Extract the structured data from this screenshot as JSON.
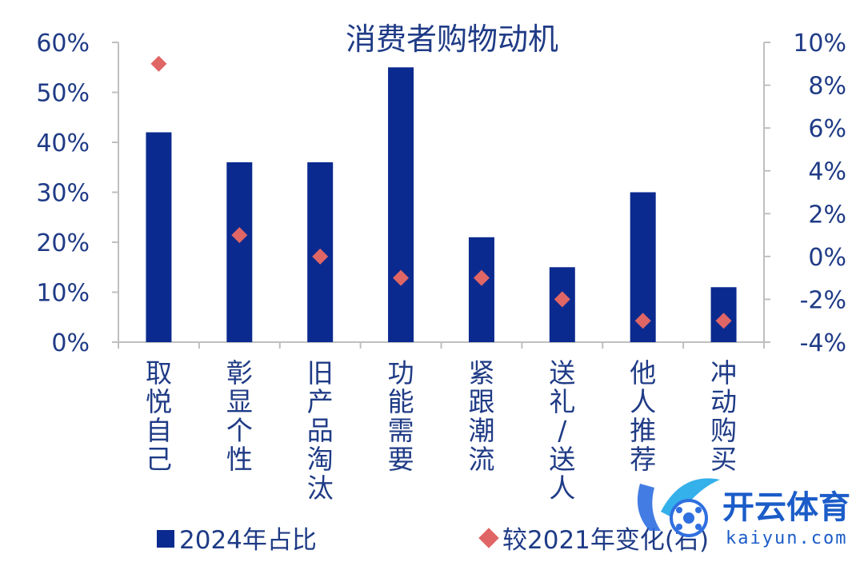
{
  "chart_data": {
    "type": "bar",
    "title": "消费者购物动机",
    "categories": [
      "取悦自己",
      "彰显个性",
      "旧产品淘汰",
      "功能需要",
      "紧跟潮流",
      "送礼/送人",
      "他人推荐",
      "冲动购买"
    ],
    "series": [
      {
        "name": "2024年占比",
        "type": "bar",
        "axis": "left",
        "values": [
          42,
          36,
          36,
          55,
          21,
          15,
          30,
          11
        ]
      },
      {
        "name": "较2021年变化(右)",
        "type": "scatter",
        "axis": "right",
        "values": [
          9,
          1,
          0,
          -1,
          -1,
          -2,
          -3,
          -3
        ]
      }
    ],
    "y_left": {
      "ylim": [
        0,
        60
      ],
      "ticks": [
        "0%",
        "10%",
        "20%",
        "30%",
        "40%",
        "50%",
        "60%"
      ]
    },
    "y_right": {
      "ylim": [
        -4,
        10
      ],
      "ticks": [
        "-4%",
        "-2%",
        "0%",
        "2%",
        "4%",
        "6%",
        "8%",
        "10%"
      ]
    },
    "grid": false,
    "legend": "bottom",
    "colors": {
      "bar": "#0b2a8f",
      "marker": "#e06666",
      "text": "#1f3b86",
      "axis": "#bfbfbf"
    }
  },
  "watermark": {
    "brand_cn": "开云体育",
    "brand_en": "kaiyun.com",
    "icon": "kaiyun-logo-icon"
  }
}
